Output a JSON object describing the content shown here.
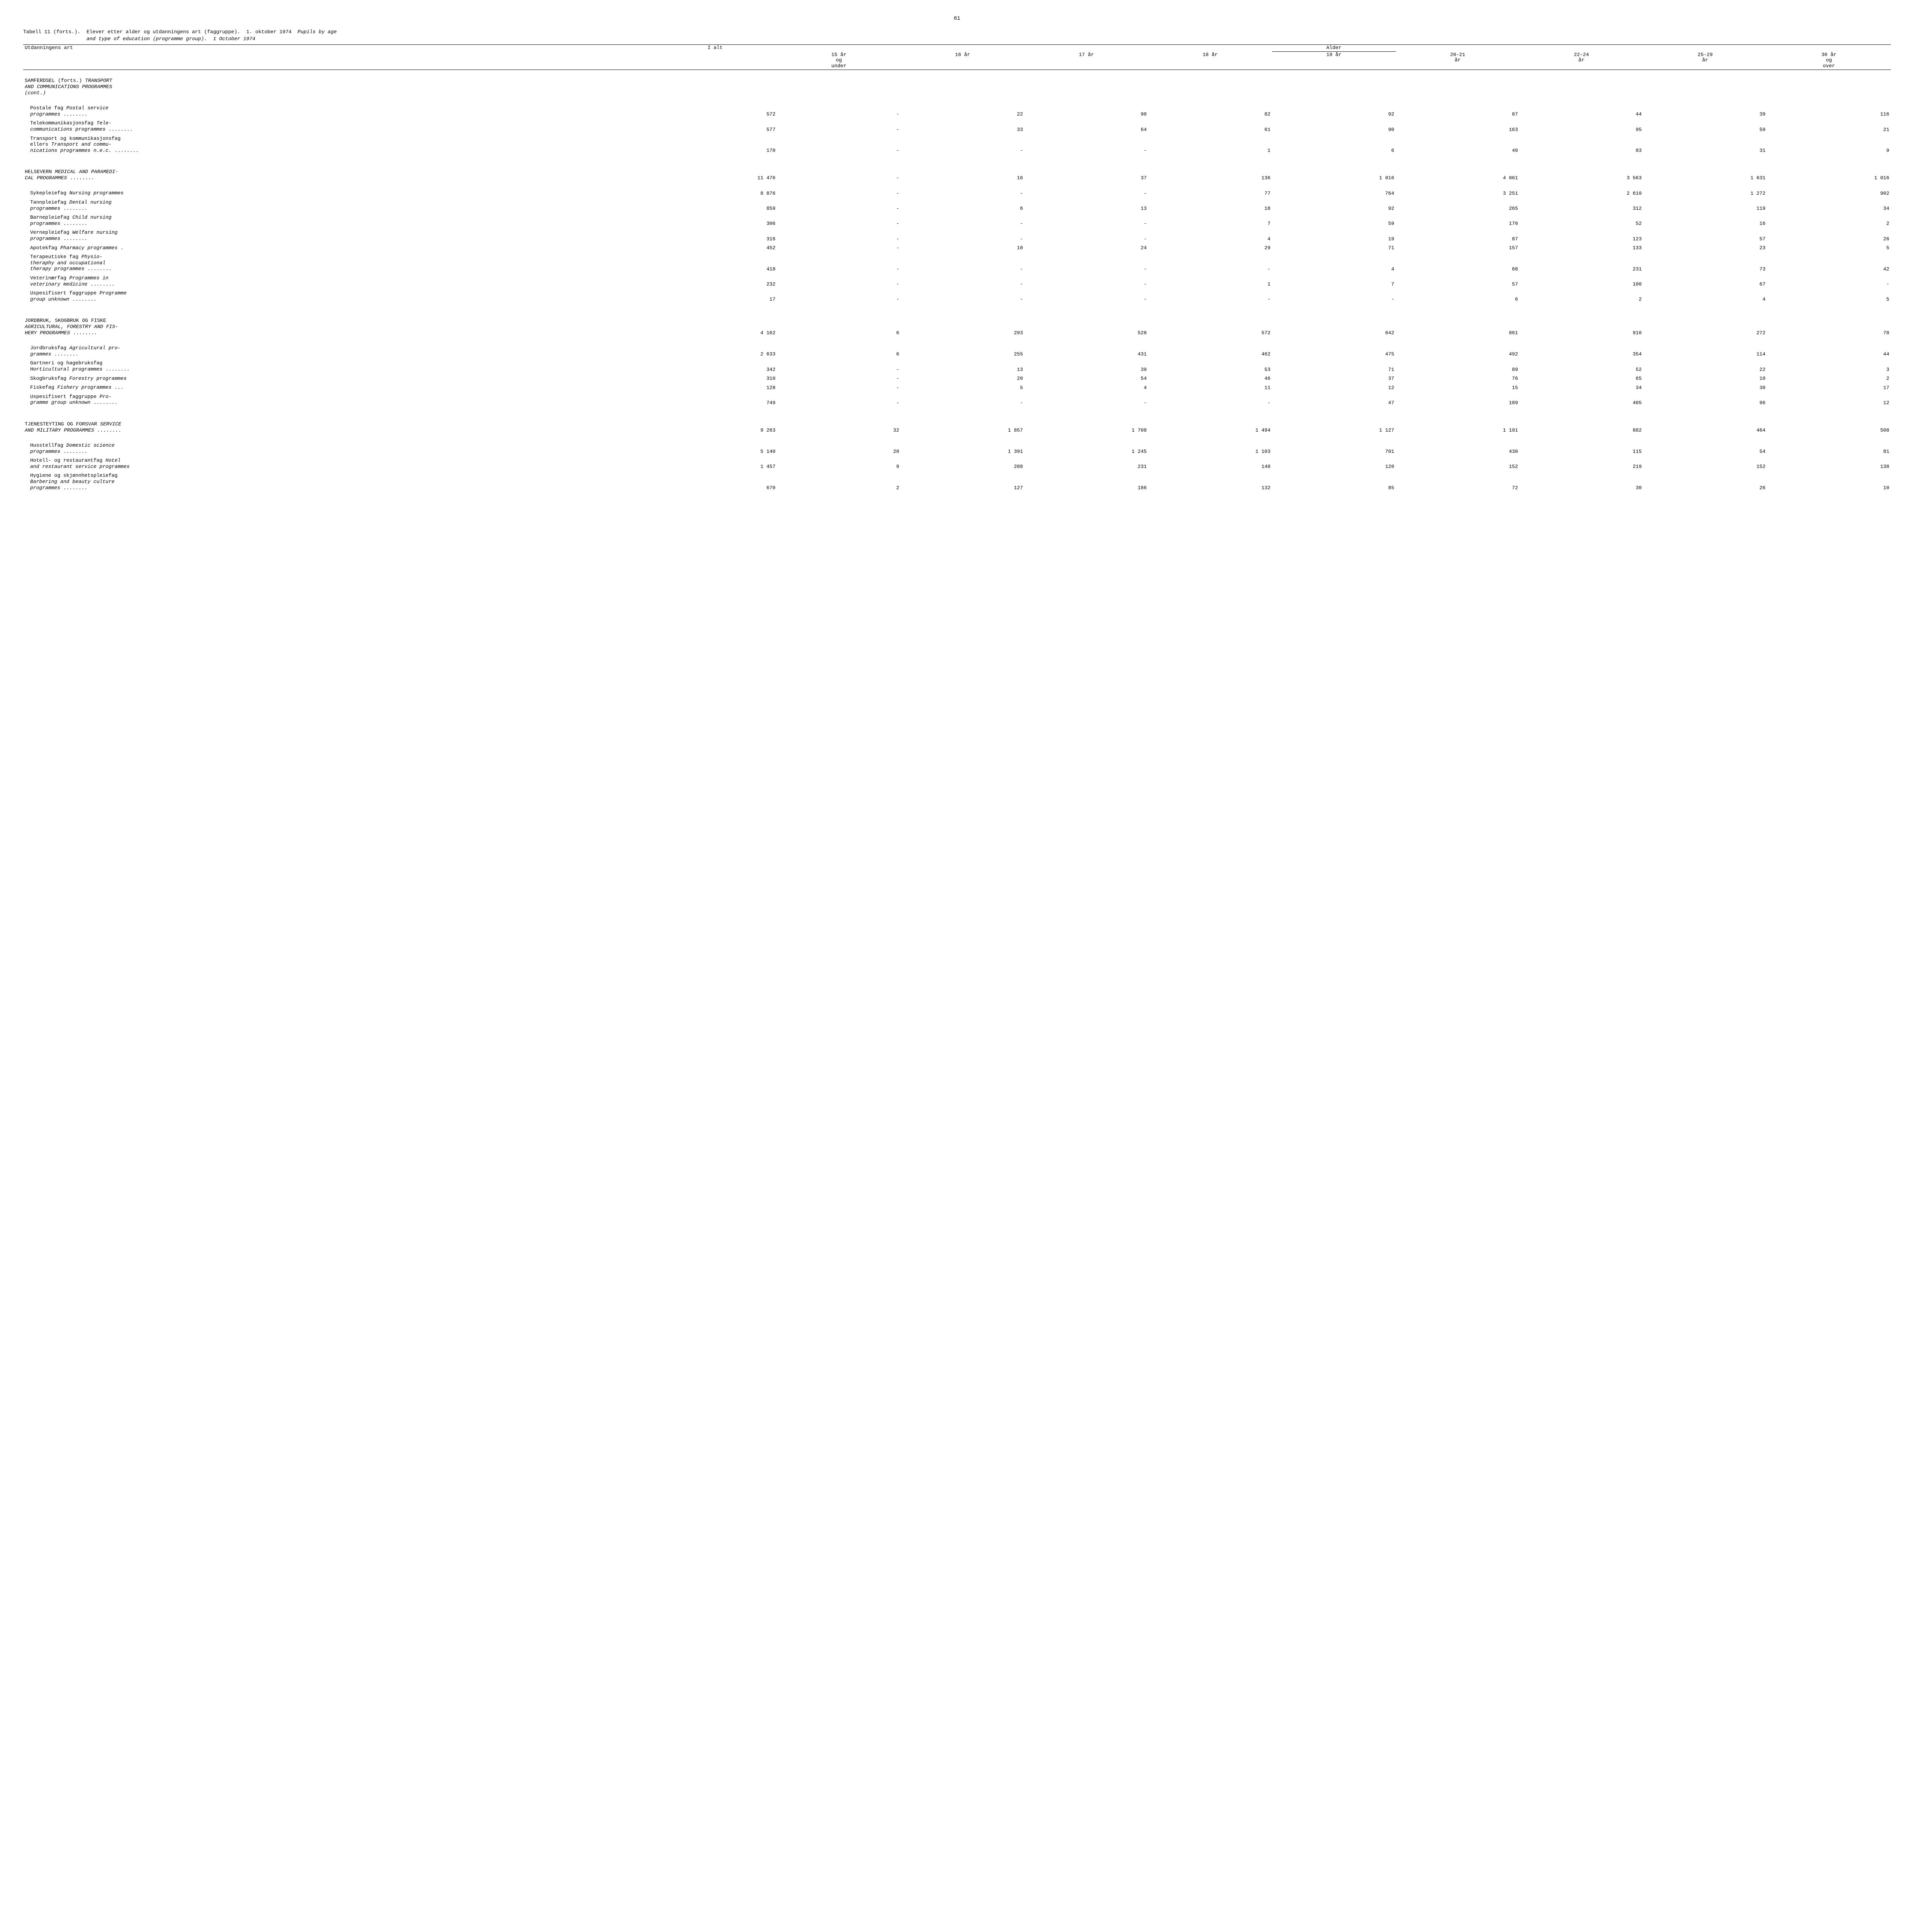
{
  "page_number": "61",
  "title_line1": "Tabell 11 (forts.).  Elever etter alder og utdanningens art (faggruppe).  1. oktober 1974  ",
  "title_italic1": "Pupils by age",
  "title_line2_indent": "                     ",
  "title_italic2": "and type of education (programme group).  1 October 1974",
  "columns": {
    "label": "Utdanningens art",
    "ialt": "I alt",
    "age_header": "Alder",
    "c15": "15 år\nog\nunder",
    "c16": "16 år",
    "c17": "17 år",
    "c18": "18 år",
    "c19": "19 år",
    "c2021": "20-21\når",
    "c2224": "22-24\når",
    "c2529": "25-29\når",
    "c30": "30 år\nog\nover"
  },
  "rows": [
    {
      "type": "section",
      "label_plain": "SAMFERDSEL (forts.)  ",
      "label_italic": "TRANSPORT\nAND COMMUNICATIONS PROGRAMMES\n(cont.)",
      "vals": []
    },
    {
      "type": "spacer"
    },
    {
      "type": "sub",
      "label_plain": "Postale fag  ",
      "label_italic": "Postal service\nprogrammes  ",
      "dots": true,
      "vals": [
        "572",
        "-",
        "22",
        "90",
        "82",
        "92",
        "87",
        "44",
        "39",
        "116"
      ]
    },
    {
      "type": "sub",
      "label_plain": "Telekommunikasjonsfag  ",
      "label_italic": "Tele-\ncommunications programmes  ",
      "dots": true,
      "vals": [
        "577",
        "-",
        "33",
        "64",
        "61",
        "90",
        "163",
        "95",
        "50",
        "21"
      ]
    },
    {
      "type": "sub",
      "label_plain": "Transport og kommunikasjonsfag\nellers  ",
      "label_italic": "Transport and commu-\nnications programmes n.e.c.  ",
      "dots": true,
      "vals": [
        "170",
        "-",
        "-",
        "-",
        "1",
        "6",
        "40",
        "83",
        "31",
        "9"
      ]
    },
    {
      "type": "spacer"
    },
    {
      "type": "section",
      "label_plain": "HELSEVERN  ",
      "label_italic": "MEDICAL AND PARAMEDI-\nCAL PROGRAMMES  ",
      "dots": true,
      "vals": [
        "11 476",
        "-",
        "16",
        "37",
        "136",
        "1 016",
        "4 061",
        "3 563",
        "1 631",
        "1 016"
      ]
    },
    {
      "type": "spacer"
    },
    {
      "type": "sub",
      "label_plain": "Sykepleiefag  ",
      "label_italic": "Nursing programmes",
      "vals": [
        "8 876",
        "-",
        "-",
        "-",
        "77",
        "764",
        "3 251",
        "2 610",
        "1 272",
        "902"
      ]
    },
    {
      "type": "sub",
      "label_plain": "Tannpleiefag  ",
      "label_italic": "Dental nursing\nprogrammes  ",
      "dots": true,
      "vals": [
        "859",
        "-",
        "6",
        "13",
        "18",
        "92",
        "265",
        "312",
        "119",
        "34"
      ]
    },
    {
      "type": "sub",
      "label_plain": "Barnepleiefag  ",
      "label_italic": "Child nursing\nprogrammes  ",
      "dots": true,
      "vals": [
        "306",
        "-",
        "-",
        "-",
        "7",
        "59",
        "170",
        "52",
        "16",
        "2"
      ]
    },
    {
      "type": "sub",
      "label_plain": "Vernepleiefag  ",
      "label_italic": "Welfare nursing\nprogrammes  ",
      "dots": true,
      "vals": [
        "316",
        "-",
        "-",
        "-",
        "4",
        "19",
        "87",
        "123",
        "57",
        "26"
      ]
    },
    {
      "type": "sub",
      "label_plain": "Apotekfag  ",
      "label_italic": "Pharmacy programmes  .",
      "vals": [
        "452",
        "-",
        "10",
        "24",
        "29",
        "71",
        "157",
        "133",
        "23",
        "5"
      ]
    },
    {
      "type": "sub",
      "label_plain": "Terapeutiske fag  ",
      "label_italic": "Physio-\ntheraphy and occupational\ntherapy programmes  ",
      "dots": true,
      "vals": [
        "418",
        "-",
        "-",
        "-",
        "-",
        "4",
        "68",
        "231",
        "73",
        "42"
      ]
    },
    {
      "type": "sub",
      "label_plain": "Veterinærfag  ",
      "label_italic": "Programmes in\nveterinary medicine  ",
      "dots": true,
      "vals": [
        "232",
        "-",
        "-",
        "-",
        "1",
        "7",
        "57",
        "100",
        "67",
        "-"
      ]
    },
    {
      "type": "sub",
      "label_plain": "Uspesifisert faggruppe  ",
      "label_italic": "Programme\ngroup unknown  ",
      "dots": true,
      "vals": [
        "17",
        "-",
        "-",
        "-",
        "-",
        "-",
        "6",
        "2",
        "4",
        "5"
      ]
    },
    {
      "type": "spacer"
    },
    {
      "type": "section",
      "label_plain": "JORDBRUK, SKOGBRUK OG FISKE\n",
      "label_italic": "AGRICULTURAL, FORESTRY AND FIS-\nHERY PROGRAMMES  ",
      "dots": true,
      "vals": [
        "4 162",
        "6",
        "293",
        "528",
        "572",
        "642",
        "861",
        "910",
        "272",
        "78"
      ]
    },
    {
      "type": "spacer"
    },
    {
      "type": "sub",
      "label_plain": "Jordbruksfag  ",
      "label_italic": "Agricultural pro-\ngrammes  ",
      "dots": true,
      "vals": [
        "2 633",
        "6",
        "255",
        "431",
        "462",
        "475",
        "492",
        "354",
        "114",
        "44"
      ]
    },
    {
      "type": "sub",
      "label_plain": "Gartneri og hagebruksfag\n",
      "label_italic": "Horticultural programmes  ",
      "dots": true,
      "vals": [
        "342",
        "-",
        "13",
        "39",
        "53",
        "71",
        "89",
        "52",
        "22",
        "3"
      ]
    },
    {
      "type": "sub",
      "label_plain": "Skogbruksfag  ",
      "label_italic": "Forestry programmes",
      "vals": [
        "310",
        "-",
        "20",
        "54",
        "46",
        "37",
        "76",
        "65",
        "10",
        "2"
      ]
    },
    {
      "type": "sub",
      "label_plain": "Fiskefag  ",
      "label_italic": "Fishery programmes  ...",
      "vals": [
        "128",
        "-",
        "5",
        "4",
        "11",
        "12",
        "15",
        "34",
        "30",
        "17"
      ]
    },
    {
      "type": "sub",
      "label_plain": "Uspesifisert faggruppe  ",
      "label_italic": "Pro-\ngramme group unknown  ",
      "dots": true,
      "vals": [
        "749",
        "-",
        "-",
        "-",
        "-",
        "47",
        "189",
        "405",
        "96",
        "12"
      ]
    },
    {
      "type": "spacer"
    },
    {
      "type": "section",
      "label_plain": "TJENESTEYTING OG FORSVAR  ",
      "label_italic": "SERVICE\nAND MILITARY PROGRAMMES  ",
      "dots": true,
      "vals": [
        "9 263",
        "32",
        "1 857",
        "1 708",
        "1 494",
        "1 127",
        "1 191",
        "882",
        "464",
        "508"
      ]
    },
    {
      "type": "spacer"
    },
    {
      "type": "sub",
      "label_plain": "Husstellfag  ",
      "label_italic": "Domestic science\nprogrammes  ",
      "dots": true,
      "vals": [
        "5 140",
        "20",
        "1 391",
        "1 245",
        "1 103",
        "701",
        "430",
        "115",
        "54",
        "81"
      ]
    },
    {
      "type": "sub",
      "label_plain": "Hotell- og restaurantfag  ",
      "label_italic": "Hotel\nand restaurant service programmes",
      "vals": [
        "1 457",
        "9",
        "288",
        "231",
        "148",
        "120",
        "152",
        "219",
        "152",
        "138"
      ]
    },
    {
      "type": "sub",
      "label_plain": "Hygiene og skjønnhetspleiefag\n",
      "label_italic": "Barbering and beauty culture\nprogrammes  ",
      "dots": true,
      "vals": [
        "670",
        "2",
        "127",
        "186",
        "132",
        "85",
        "72",
        "30",
        "26",
        "10"
      ]
    }
  ]
}
